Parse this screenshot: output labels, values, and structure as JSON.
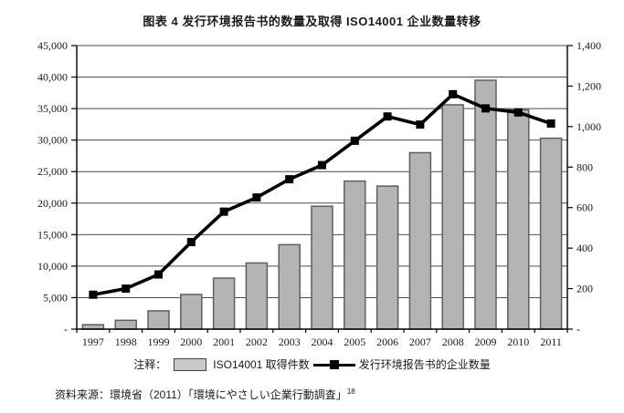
{
  "title": "图表 4  发行环境报告书的数量及取得 ISO14001 企业数量转移",
  "legend": {
    "prefix": "注释：",
    "bar_label": "ISO14001 取得件数",
    "line_label": "发行环境报告书的企业数量"
  },
  "source": {
    "text": "资料来源：環境省（2011）「環境にやさしい企業行動調査」",
    "superscript": "18"
  },
  "colors": {
    "bar_fill": "#b4b4b4",
    "bar_border": "#5f5f5f",
    "line": "#000000",
    "grid": "#4d4d4d",
    "axis": "#000000"
  },
  "chart_data": {
    "type": "bar",
    "title": "图表 4  发行环境报告书的数量及取得 ISO14001 企业数量转移",
    "categories": [
      "1997",
      "1998",
      "1999",
      "2000",
      "2001",
      "2002",
      "2003",
      "2004",
      "2005",
      "2006",
      "2007",
      "2008",
      "2009",
      "2010",
      "2011"
    ],
    "series": [
      {
        "name": "ISO14001 取得件数",
        "type": "bar",
        "axis": "left",
        "values": [
          700,
          1400,
          2900,
          5500,
          8100,
          10500,
          13400,
          19500,
          23500,
          22700,
          28000,
          35600,
          39500,
          34800,
          30300
        ]
      },
      {
        "name": "发行环境报告书的企业数量",
        "type": "line",
        "axis": "right",
        "values": [
          170,
          200,
          270,
          430,
          580,
          650,
          740,
          810,
          930,
          1050,
          1010,
          1160,
          1090,
          1070,
          1015
        ]
      }
    ],
    "left_axis": {
      "label": "",
      "min": 0,
      "max": 45000,
      "step": 5000,
      "zero_label": "-"
    },
    "right_axis": {
      "label": "",
      "min": 0,
      "max": 1400,
      "step": 200,
      "zero_label": "-"
    },
    "grid": true,
    "legend_position": "bottom"
  }
}
